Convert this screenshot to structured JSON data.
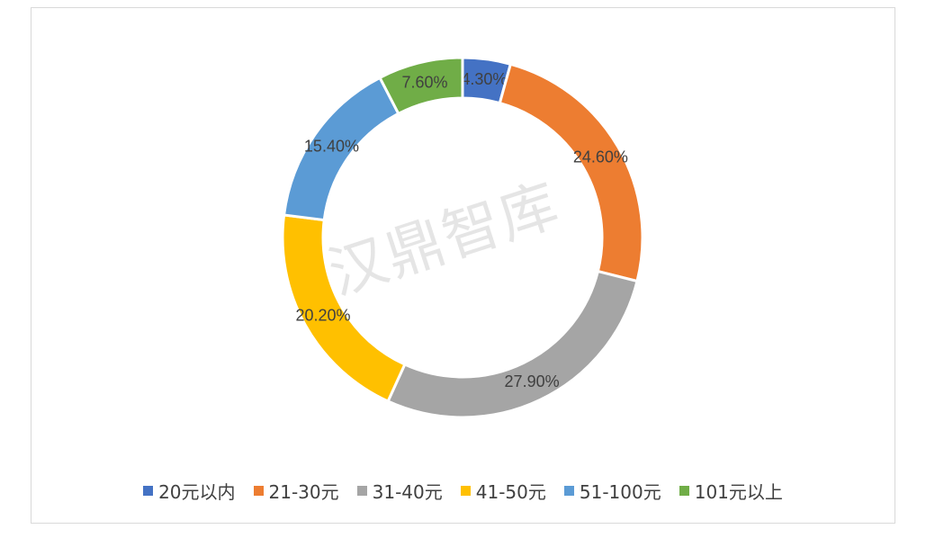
{
  "watermark": "汉鼎智库",
  "chart_data": {
    "type": "pie",
    "variant": "doughnut",
    "title": "",
    "categories": [
      "20元以内",
      "21-30元",
      "31-40元",
      "41-50元",
      "51-100元",
      "101元以上"
    ],
    "values": [
      4.3,
      24.6,
      27.9,
      20.2,
      15.4,
      7.6
    ],
    "labels": [
      "4.30%",
      "24.60%",
      "27.90%",
      "20.20%",
      "15.40%",
      "7.60%"
    ],
    "colors": [
      "#4472c4",
      "#ed7d31",
      "#a5a5a5",
      "#ffc000",
      "#5b9bd5",
      "#70ad47"
    ],
    "legend": "bottom"
  }
}
